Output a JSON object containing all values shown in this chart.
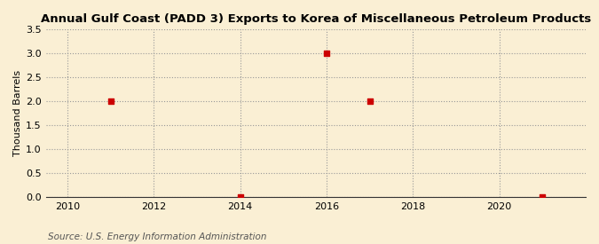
{
  "title": "Annual Gulf Coast (PADD 3) Exports to Korea of Miscellaneous Petroleum Products",
  "ylabel": "Thousand Barrels",
  "source": "Source: U.S. Energy Information Administration",
  "background_color": "#faefd4",
  "data_points": [
    {
      "year": 2011,
      "value": 2.0
    },
    {
      "year": 2014,
      "value": 0.0
    },
    {
      "year": 2016,
      "value": 3.0
    },
    {
      "year": 2017,
      "value": 2.0
    },
    {
      "year": 2021,
      "value": 0.0
    }
  ],
  "marker_color": "#cc0000",
  "marker_style": "s",
  "marker_size": 5,
  "xlim": [
    2009.5,
    2022.0
  ],
  "ylim": [
    0.0,
    3.5
  ],
  "yticks": [
    0.0,
    0.5,
    1.0,
    1.5,
    2.0,
    2.5,
    3.0,
    3.5
  ],
  "xticks": [
    2010,
    2012,
    2014,
    2016,
    2018,
    2020
  ],
  "grid_color": "#999999",
  "grid_style": ":",
  "grid_alpha": 1.0,
  "grid_linewidth": 0.8,
  "title_fontsize": 9.5,
  "label_fontsize": 8,
  "tick_fontsize": 8,
  "source_fontsize": 7.5
}
